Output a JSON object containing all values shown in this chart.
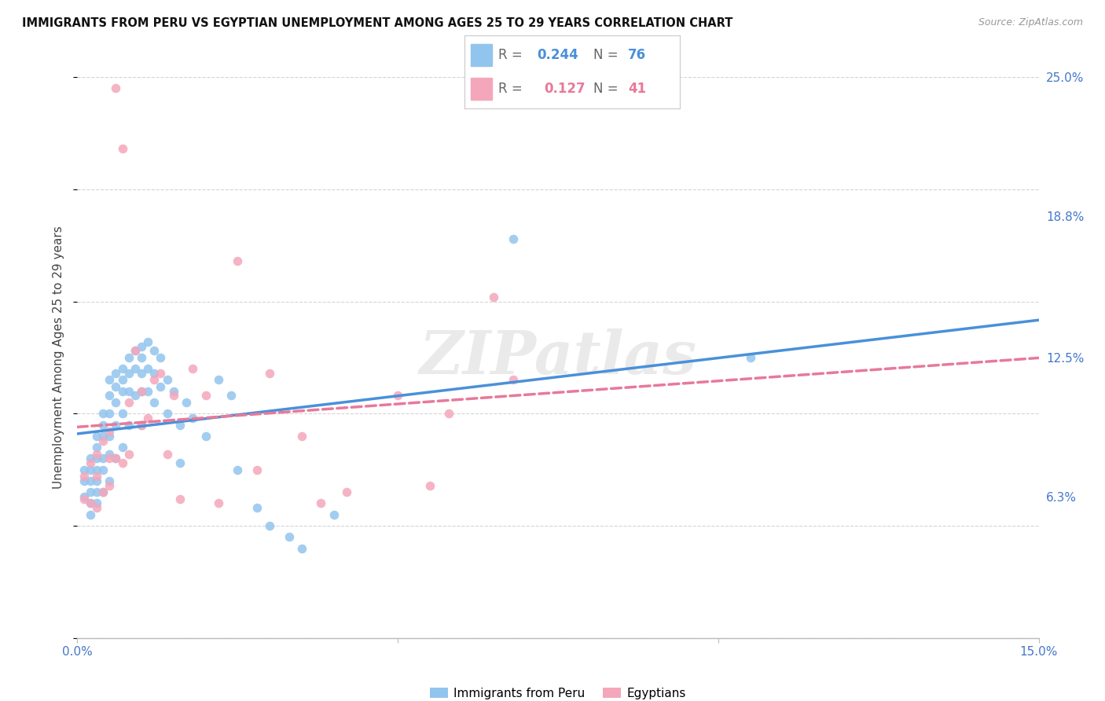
{
  "title": "IMMIGRANTS FROM PERU VS EGYPTIAN UNEMPLOYMENT AMONG AGES 25 TO 29 YEARS CORRELATION CHART",
  "source": "Source: ZipAtlas.com",
  "ylabel": "Unemployment Among Ages 25 to 29 years",
  "x_min": 0.0,
  "x_max": 0.15,
  "y_min": 0.0,
  "y_max": 0.25,
  "x_ticks": [
    0.0,
    0.05,
    0.1,
    0.15
  ],
  "x_tick_labels": [
    "0.0%",
    "",
    "",
    "15.0%"
  ],
  "y_tick_labels_right": [
    "25.0%",
    "18.8%",
    "12.5%",
    "6.3%"
  ],
  "y_ticks_right": [
    0.25,
    0.188,
    0.125,
    0.063
  ],
  "color_peru": "#92C5EE",
  "color_egypt": "#F4A7BB",
  "color_peru_line": "#4A90D9",
  "color_egypt_line": "#E8799A",
  "watermark": "ZIPatlas",
  "peru_x": [
    0.001,
    0.001,
    0.001,
    0.002,
    0.002,
    0.002,
    0.002,
    0.002,
    0.002,
    0.003,
    0.003,
    0.003,
    0.003,
    0.003,
    0.003,
    0.003,
    0.004,
    0.004,
    0.004,
    0.004,
    0.004,
    0.004,
    0.005,
    0.005,
    0.005,
    0.005,
    0.005,
    0.005,
    0.006,
    0.006,
    0.006,
    0.006,
    0.006,
    0.007,
    0.007,
    0.007,
    0.007,
    0.007,
    0.008,
    0.008,
    0.008,
    0.008,
    0.009,
    0.009,
    0.009,
    0.01,
    0.01,
    0.01,
    0.01,
    0.01,
    0.011,
    0.011,
    0.011,
    0.012,
    0.012,
    0.012,
    0.013,
    0.013,
    0.014,
    0.014,
    0.015,
    0.016,
    0.016,
    0.017,
    0.018,
    0.02,
    0.022,
    0.024,
    0.025,
    0.028,
    0.03,
    0.033,
    0.035,
    0.04,
    0.068,
    0.105
  ],
  "peru_y": [
    0.075,
    0.07,
    0.063,
    0.08,
    0.075,
    0.07,
    0.065,
    0.06,
    0.055,
    0.09,
    0.085,
    0.08,
    0.075,
    0.07,
    0.065,
    0.06,
    0.1,
    0.095,
    0.09,
    0.08,
    0.075,
    0.065,
    0.115,
    0.108,
    0.1,
    0.09,
    0.082,
    0.07,
    0.118,
    0.112,
    0.105,
    0.095,
    0.08,
    0.12,
    0.115,
    0.11,
    0.1,
    0.085,
    0.125,
    0.118,
    0.11,
    0.095,
    0.128,
    0.12,
    0.108,
    0.13,
    0.125,
    0.118,
    0.11,
    0.095,
    0.132,
    0.12,
    0.11,
    0.128,
    0.118,
    0.105,
    0.125,
    0.112,
    0.115,
    0.1,
    0.11,
    0.095,
    0.078,
    0.105,
    0.098,
    0.09,
    0.115,
    0.108,
    0.075,
    0.058,
    0.05,
    0.045,
    0.04,
    0.055,
    0.178,
    0.125
  ],
  "egypt_x": [
    0.001,
    0.001,
    0.002,
    0.002,
    0.003,
    0.003,
    0.003,
    0.004,
    0.004,
    0.005,
    0.005,
    0.005,
    0.006,
    0.006,
    0.007,
    0.007,
    0.008,
    0.008,
    0.009,
    0.01,
    0.01,
    0.011,
    0.012,
    0.013,
    0.014,
    0.015,
    0.016,
    0.018,
    0.02,
    0.022,
    0.025,
    0.028,
    0.03,
    0.035,
    0.038,
    0.042,
    0.05,
    0.055,
    0.058,
    0.065,
    0.068
  ],
  "egypt_y": [
    0.072,
    0.062,
    0.078,
    0.06,
    0.082,
    0.072,
    0.058,
    0.088,
    0.065,
    0.092,
    0.08,
    0.068,
    0.245,
    0.08,
    0.218,
    0.078,
    0.105,
    0.082,
    0.128,
    0.11,
    0.095,
    0.098,
    0.115,
    0.118,
    0.082,
    0.108,
    0.062,
    0.12,
    0.108,
    0.06,
    0.168,
    0.075,
    0.118,
    0.09,
    0.06,
    0.065,
    0.108,
    0.068,
    0.1,
    0.152,
    0.115
  ]
}
